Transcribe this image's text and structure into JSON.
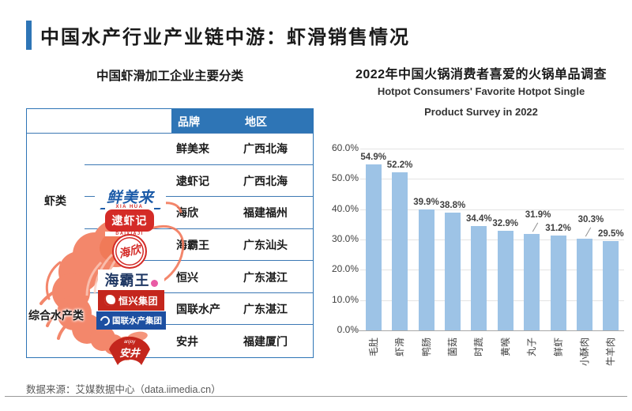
{
  "page": {
    "title": "中国水产行业产业链中游：虾滑销售情况"
  },
  "colors": {
    "accent_blue": "#2E75B6",
    "table_line_blue": "#3C78B4",
    "bar_blue": "#9DC3E6",
    "logo_red": "#C4261D",
    "badge_red": "#D42B27",
    "navy": "#1F3864",
    "guolian_blue": "#1D4FA1",
    "xianmeilai_blue": "#1C5BA8"
  },
  "left_panel": {
    "subtitle": "中国虾滑加工企业主要分类",
    "table": {
      "col_headers": [
        "品牌",
        "地区"
      ],
      "rows": [
        {
          "brand": "鲜美来",
          "region": "广西北海"
        },
        {
          "brand": "逮虾记",
          "region": "广西北海"
        },
        {
          "brand": "海欣",
          "region": "福建福州"
        },
        {
          "brand": "海霸王",
          "region": "广东汕头"
        },
        {
          "brand": "恒兴",
          "region": "广东湛江"
        },
        {
          "brand": "国联水产",
          "region": "广东湛江"
        },
        {
          "brand": "安井",
          "region": "福建厦门"
        }
      ],
      "category_labels": [
        "虾类",
        "综合水产类"
      ],
      "logos": {
        "xianmeilai": "鲜美来",
        "daixiaji": {
          "top": "XIA HUA",
          "main": "逮虾记",
          "bottom": "DAIXIAJI"
        },
        "haixin": "海欣",
        "haibawang": "海霸王",
        "hengxing": "恒兴集团",
        "guolian": "国联水产集团",
        "anjing": {
          "top": "anjoy",
          "main": "安井"
        }
      }
    }
  },
  "chart_data": {
    "type": "bar",
    "title": "2022年中国火锅消费者喜爱的火锅单品调查",
    "subtitle_lines": [
      "Hotpot Consumers' Favorite Hotpot Single",
      "Product Survey in 2022"
    ],
    "categories": [
      "毛肚",
      "虾滑",
      "鸭肠",
      "菌菇",
      "时蔬",
      "黄喉",
      "丸子",
      "鲜虾",
      "小酥肉",
      "牛羊肉"
    ],
    "values": [
      54.9,
      52.2,
      39.9,
      38.8,
      34.4,
      32.9,
      31.9,
      31.2,
      30.3,
      29.5
    ],
    "labels": [
      "54.9%",
      "52.2%",
      "39.9%",
      "38.8%",
      "34.4%",
      "32.9%",
      "31.9%",
      "31.2%",
      "30.3%",
      "29.5%"
    ],
    "callout_indices": [
      6,
      8
    ],
    "ylim": [
      0,
      60
    ],
    "ytick_step": 10,
    "ytick_labels": [
      "0.0%",
      "10.0%",
      "20.0%",
      "30.0%",
      "40.0%",
      "50.0%",
      "60.0%"
    ],
    "grid": true,
    "legend": "none",
    "bar_color": "#9DC3E6"
  },
  "footer": {
    "source": "数据来源：艾媒数据中心（data.iimedia.cn）"
  }
}
